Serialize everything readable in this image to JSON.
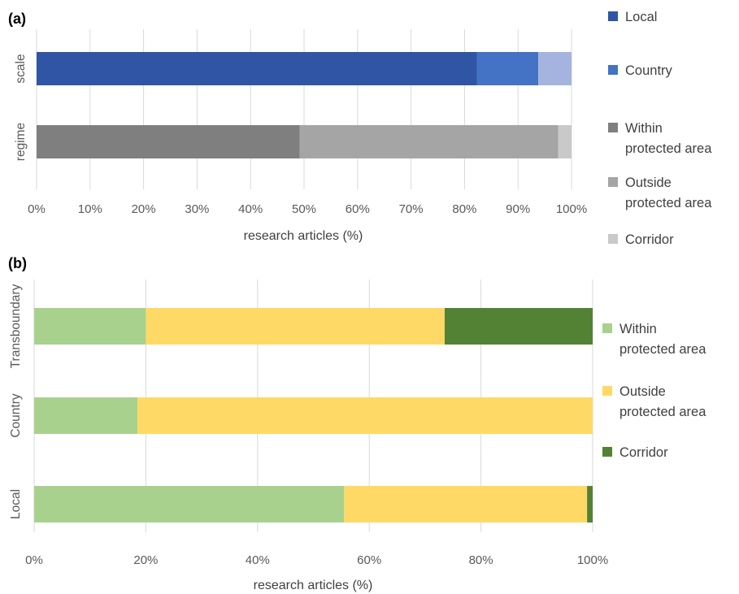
{
  "chart_data": [
    {
      "panel_label": "(a)",
      "type": "bar",
      "orientation": "horizontal",
      "stacked": "percent",
      "xlabel": "research articles (%)",
      "ylabel": "",
      "xlim": [
        0,
        100
      ],
      "x_ticks": [
        "0%",
        "10%",
        "20%",
        "30%",
        "40%",
        "50%",
        "60%",
        "70%",
        "80%",
        "90%",
        "100%"
      ],
      "grid": true,
      "legend_position": "right",
      "categories": [
        "scale",
        "regime"
      ],
      "groups": [
        {
          "category": "scale",
          "series": [
            {
              "name": "Local",
              "value": 82.3,
              "color": "#2f55a4"
            },
            {
              "name": "Country",
              "value": 11.5,
              "color": "#4472c4"
            },
            {
              "name": "",
              "value": 6.2,
              "color": "#a5b4de"
            }
          ]
        },
        {
          "category": "regime",
          "series": [
            {
              "name": "Within\nprotected area",
              "value": 49.2,
              "color": "#7f7f7f"
            },
            {
              "name": "Outside\nprotected area",
              "value": 48.3,
              "color": "#a5a5a5"
            },
            {
              "name": "Corridor",
              "value": 2.5,
              "color": "#c9c9c9"
            }
          ]
        }
      ],
      "legend": [
        {
          "lines": [
            "Local"
          ],
          "color": "#2f55a4"
        },
        {
          "lines": [
            "Country"
          ],
          "color": "#4472c4"
        },
        {
          "lines": [
            "Within",
            "protected area"
          ],
          "color": "#7f7f7f"
        },
        {
          "lines": [
            "Outside",
            "protected area"
          ],
          "color": "#a5a5a5"
        },
        {
          "lines": [
            "Corridor"
          ],
          "color": "#c9c9c9"
        }
      ]
    },
    {
      "panel_label": "(b)",
      "type": "bar",
      "orientation": "horizontal",
      "stacked": "percent",
      "xlabel": "research articles (%)",
      "ylabel": "",
      "xlim": [
        0,
        100
      ],
      "x_ticks": [
        "0%",
        "20%",
        "40%",
        "60%",
        "80%",
        "100%"
      ],
      "grid": true,
      "legend_position": "right",
      "categories": [
        "Transboundary",
        "Country",
        "Local"
      ],
      "series": [
        {
          "name": "Within protected area",
          "values": [
            20,
            18.5,
            55.5
          ],
          "color": "#a9d18e"
        },
        {
          "name": "Outside protected area",
          "values": [
            53.5,
            81.5,
            43.5
          ],
          "color": "#ffd966"
        },
        {
          "name": "Corridor",
          "values": [
            26.5,
            0,
            1
          ],
          "color": "#548235"
        }
      ],
      "legend": [
        {
          "lines": [
            "Within",
            "protected area"
          ],
          "color": "#a9d18e"
        },
        {
          "lines": [
            "Outside",
            "protected area"
          ],
          "color": "#ffd966"
        },
        {
          "lines": [
            "Corridor"
          ],
          "color": "#548235"
        }
      ]
    }
  ]
}
